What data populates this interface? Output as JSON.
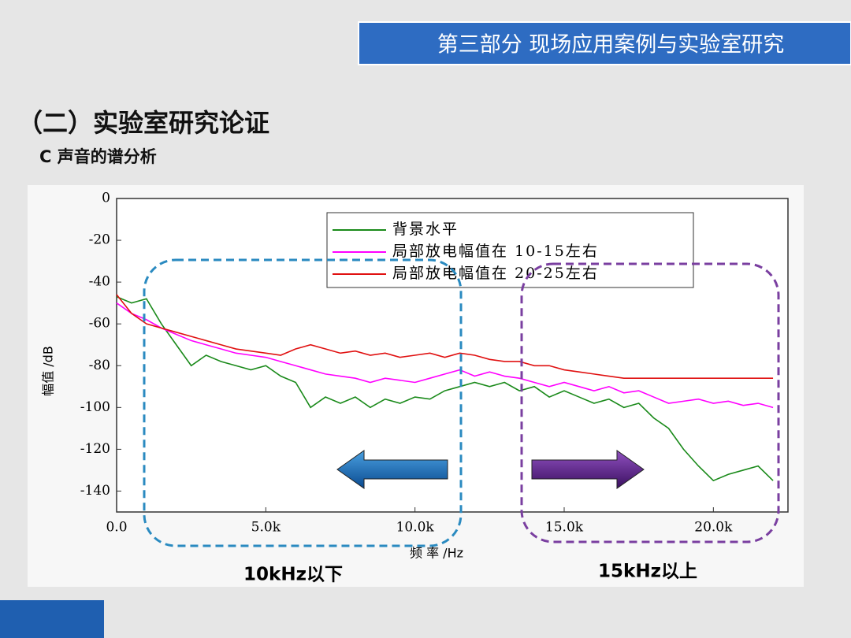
{
  "header": {
    "title": "第三部分 现场应用案例与实验室研究"
  },
  "section_title": "（二）实验室研究论证",
  "subtitle": "C 声音的谱分析",
  "chart_data": {
    "type": "line",
    "xlabel": "频 率 /Hz",
    "ylabel": "幅值 /dB",
    "xlim": [
      0,
      22500
    ],
    "ylim": [
      -150,
      0
    ],
    "xticks": [
      {
        "value": 0,
        "label": "0.0"
      },
      {
        "value": 5000,
        "label": "5.0k"
      },
      {
        "value": 10000,
        "label": "10.0k"
      },
      {
        "value": 15000,
        "label": "15.0k"
      },
      {
        "value": 20000,
        "label": "20.0k"
      }
    ],
    "yticks": [
      0,
      -20,
      -40,
      -60,
      -80,
      -100,
      -120,
      -140
    ],
    "legend": "top-right",
    "x": [
      0,
      500,
      1000,
      1500,
      2000,
      2500,
      3000,
      3500,
      4000,
      4500,
      5000,
      5500,
      6000,
      6500,
      7000,
      7500,
      8000,
      8500,
      9000,
      9500,
      10000,
      10500,
      11000,
      11500,
      12000,
      12500,
      13000,
      13500,
      14000,
      14500,
      15000,
      15500,
      16000,
      16500,
      17000,
      17500,
      18000,
      18500,
      19000,
      19500,
      20000,
      20500,
      21000,
      21500,
      22000
    ],
    "series": [
      {
        "name": "背景水平",
        "color": "#1a8a1a",
        "values": [
          -47,
          -50,
          -48,
          -60,
          -70,
          -80,
          -75,
          -78,
          -80,
          -82,
          -80,
          -85,
          -88,
          -100,
          -95,
          -98,
          -95,
          -100,
          -96,
          -98,
          -95,
          -96,
          -92,
          -90,
          -88,
          -90,
          -88,
          -92,
          -90,
          -95,
          -92,
          -95,
          -98,
          -96,
          -100,
          -98,
          -105,
          -110,
          -120,
          -128,
          -135,
          -132,
          -130,
          -128,
          -135
        ]
      },
      {
        "name": "局部放电幅值在 10-15左右",
        "color": "#ff00ff",
        "values": [
          -50,
          -55,
          -58,
          -62,
          -65,
          -68,
          -70,
          -72,
          -74,
          -75,
          -76,
          -78,
          -80,
          -82,
          -84,
          -85,
          -86,
          -88,
          -86,
          -87,
          -88,
          -86,
          -84,
          -82,
          -85,
          -83,
          -85,
          -86,
          -88,
          -90,
          -88,
          -90,
          -92,
          -90,
          -93,
          -92,
          -95,
          -98,
          -97,
          -96,
          -98,
          -97,
          -99,
          -98,
          -100
        ]
      },
      {
        "name": "局部放电幅值在 20-25左右",
        "color": "#e01010",
        "values": [
          -46,
          -55,
          -60,
          -62,
          -64,
          -66,
          -68,
          -70,
          -72,
          -73,
          -74,
          -75,
          -72,
          -70,
          -72,
          -74,
          -73,
          -75,
          -74,
          -76,
          -75,
          -74,
          -76,
          -74,
          -75,
          -77,
          -78,
          -78,
          -80,
          -80,
          -82,
          -83,
          -84,
          -85,
          -86,
          -86,
          -86,
          -86,
          -86,
          -86,
          -86,
          -86,
          -86,
          -86,
          -86
        ]
      }
    ],
    "annotations": [
      "10kHz以下",
      "15kHz以上"
    ]
  }
}
